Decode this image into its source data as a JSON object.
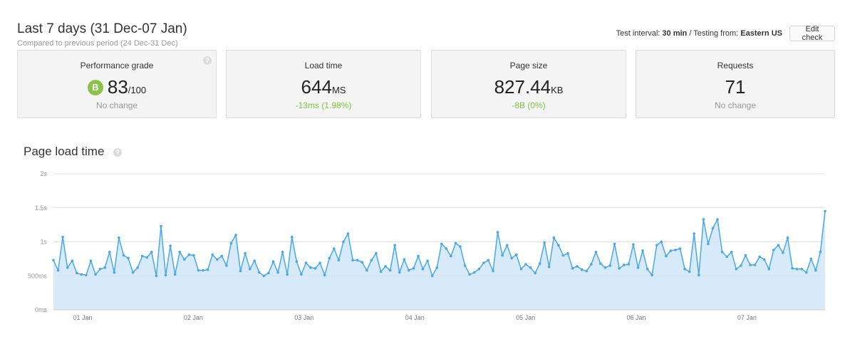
{
  "header": {
    "title": "Last 7 days (31 Dec-07 Jan)",
    "subtitle": "Compared to previous period (24 Dec-31 Dec)"
  },
  "test_info": {
    "interval_label": "Test interval:",
    "interval_value": "30 min",
    "separator": " / ",
    "location_label": "Testing from:",
    "location_value": "Eastern US"
  },
  "edit_button": "Edit check",
  "cards": {
    "performance": {
      "label": "Performance grade",
      "grade": "B",
      "value": "83",
      "unit": "/100",
      "change": "No change"
    },
    "load_time": {
      "label": "Load time",
      "value": "644",
      "unit": "MS",
      "change": "-13ms (1.98%)"
    },
    "page_size": {
      "label": "Page size",
      "value": "827.44",
      "unit": "KB",
      "change": "-8B (0%)"
    },
    "requests": {
      "label": "Requests",
      "value": "71",
      "change": "No change"
    }
  },
  "colors": {
    "accent_green": "#7cc33f",
    "grade_badge": "#8bc34a",
    "line": "#4aa8e8",
    "area": "#d6eafa"
  },
  "icons": {
    "help": "question-circle-icon"
  },
  "chart_section": {
    "title": "Page load time"
  },
  "chart_data": {
    "type": "area",
    "title": "Page load time",
    "y_ticks": [
      "0ms",
      "500ms",
      "1s",
      "1.5s",
      "2s"
    ],
    "ylim": [
      0,
      2
    ],
    "y_unit": "s",
    "x_ticks": [
      "01 Jan",
      "02 Jan",
      "03 Jan",
      "04 Jan",
      "05 Jan",
      "06 Jan",
      "07 Jan"
    ],
    "grid": true,
    "series": [
      {
        "values": [
          0.73,
          0.58,
          1.07,
          0.62,
          0.72,
          0.54,
          0.52,
          0.51,
          0.72,
          0.52,
          0.6,
          0.62,
          0.85,
          0.55,
          1.06,
          0.8,
          0.76,
          0.55,
          0.62,
          0.79,
          0.77,
          0.85,
          0.5,
          1.23,
          0.51,
          0.94,
          0.52,
          0.85,
          0.74,
          0.81,
          0.8,
          0.58,
          0.58,
          0.59,
          0.81,
          0.74,
          0.79,
          0.65,
          0.98,
          1.1,
          0.57,
          0.83,
          0.6,
          0.72,
          0.55,
          0.5,
          0.54,
          0.71,
          0.55,
          0.85,
          0.52,
          1.07,
          0.71,
          0.52,
          0.69,
          0.62,
          0.61,
          0.69,
          0.51,
          0.76,
          0.9,
          0.73,
          1.0,
          1.12,
          0.73,
          0.73,
          0.7,
          0.58,
          0.73,
          0.83,
          0.56,
          0.64,
          0.58,
          0.95,
          0.55,
          0.74,
          0.58,
          0.61,
          0.79,
          0.6,
          0.72,
          0.5,
          0.62,
          0.97,
          0.9,
          0.79,
          0.98,
          0.93,
          0.65,
          0.52,
          0.55,
          0.6,
          0.69,
          0.73,
          0.57,
          1.14,
          0.8,
          0.95,
          0.76,
          0.81,
          0.6,
          0.67,
          0.62,
          0.54,
          0.68,
          0.99,
          0.63,
          1.06,
          0.95,
          0.8,
          0.83,
          0.61,
          0.64,
          0.59,
          0.57,
          0.67,
          0.85,
          0.68,
          0.62,
          0.65,
          0.97,
          0.61,
          0.66,
          0.67,
          0.96,
          0.62,
          0.87,
          0.6,
          0.51,
          0.95,
          1.0,
          0.79,
          0.87,
          0.88,
          0.9,
          0.6,
          0.56,
          1.12,
          0.51,
          1.33,
          0.97,
          1.2,
          1.33,
          0.85,
          0.78,
          0.85,
          0.6,
          0.65,
          0.8,
          0.66,
          0.66,
          0.78,
          0.74,
          0.6,
          0.88,
          0.95,
          0.84,
          1.06,
          0.61,
          0.6,
          0.6,
          0.55,
          0.75,
          0.58,
          0.85,
          1.45
        ]
      }
    ]
  }
}
